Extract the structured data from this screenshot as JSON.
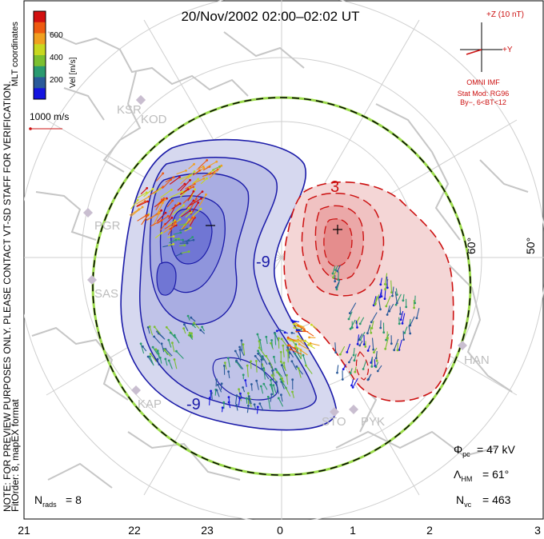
{
  "title": "20/Nov/2002 02:00–02:02 UT",
  "colorbar": {
    "ticks": [
      "600",
      "400",
      "200"
    ],
    "label": "Vel [m/s]",
    "coords": "MLT coordinates",
    "colors": [
      "#d21010",
      "#ee5a10",
      "#f0a020",
      "#c8d820",
      "#7cc030",
      "#2a9a70",
      "#2a5a9a",
      "#1515e0"
    ]
  },
  "ref_vector": "1000 m/s",
  "imf": {
    "z_label": "+Z (10 nT)",
    "y_label": "+Y",
    "source": "OMNI IMF",
    "model_line1": "Stat Mod: RG96",
    "model_line2": "By−, 6<BT<12"
  },
  "stations": [
    "KSR",
    "KOD",
    "PGR",
    "SAS",
    "KAP",
    "STO",
    "PYK",
    "HAN"
  ],
  "contour_labels": {
    "neg": "-9",
    "neg2": "-9",
    "pos": "3"
  },
  "lat_labels": [
    "60°",
    "50°"
  ],
  "mlt_labels": [
    "21",
    "22",
    "23",
    "0",
    "1",
    "2",
    "3"
  ],
  "side_note": "NOTE: FOR PREVIEW PURPOSES ONLY. PLEASE CONTACT VT-SD STAFF FOR VERIFICATION.",
  "fit_order": "FitOrder: 8, mapEX format",
  "stats": {
    "phi_sym": "Φ",
    "phi_sub": "pc",
    "phi_val": "= 47 kV",
    "lam_sym": "Λ",
    "lam_sub": "HM",
    "lam_val": "= 61°",
    "nvc_sym": "N",
    "nvc_sub": "vc",
    "nvc_val": "= 463",
    "nrads_sym": "N",
    "nrads_sub": "rads",
    "nrads_val": "= 8"
  }
}
